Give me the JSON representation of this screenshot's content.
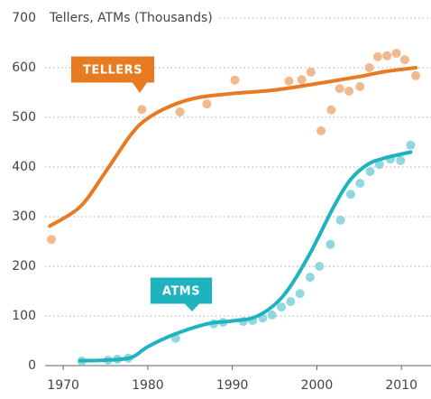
{
  "chart_data": {
    "type": "scatter",
    "title": "Tellers, ATMs (Thousands)",
    "xlim": [
      1967,
      2013.5
    ],
    "xticks": [
      1970,
      1980,
      1990,
      2000,
      2010
    ],
    "ylim": [
      0,
      700
    ],
    "yticks": [
      0,
      100,
      200,
      300,
      400,
      500,
      600,
      700
    ],
    "grid": true,
    "series": [
      {
        "name": "TELLERS",
        "color": "#e87a22",
        "point_color": "#f2b98c",
        "x": [
          1968.6,
          1979.3,
          1983.8,
          1987.0,
          1990.3,
          1996.7,
          1998.2,
          1999.3,
          2000.5,
          2001.7,
          2002.7,
          2003.8,
          2005.1,
          2006.2,
          2007.2,
          2008.3,
          2009.4,
          2010.4,
          2011.7
        ],
        "values": [
          254,
          516,
          511,
          527,
          575,
          573,
          576,
          591,
          473,
          515,
          558,
          553,
          562,
          600,
          622,
          624,
          629,
          616,
          584
        ],
        "trend_x": [
          1968.4,
          1972,
          1975,
          1978,
          1980,
          1983,
          1986,
          1990,
          1995,
          2000,
          2005,
          2008,
          2011.7
        ],
        "trend_values": [
          281,
          320,
          390,
          465,
          498,
          525,
          540,
          548,
          555,
          568,
          582,
          592,
          600
        ]
      },
      {
        "name": "ATMS",
        "color": "#1fb3bf",
        "point_color": "#8fd8de",
        "x": [
          1972.2,
          1975.3,
          1976.4,
          1977.7,
          1983.3,
          1987.8,
          1988.9,
          1991.3,
          1992.4,
          1993.6,
          1994.7,
          1995.8,
          1996.9,
          1998.0,
          1999.2,
          2000.3,
          2001.6,
          2002.8,
          2004.0,
          2005.1,
          2006.3,
          2007.4,
          2008.7,
          2009.9,
          2011.1
        ],
        "values": [
          9,
          11,
          13,
          15,
          55,
          84,
          87,
          89,
          91,
          96,
          102,
          118,
          129,
          145,
          178,
          200,
          244,
          293,
          345,
          367,
          391,
          405,
          416,
          413,
          444
        ],
        "trend_x": [
          1972,
          1975,
          1978,
          1980,
          1983,
          1987,
          1990,
          1993,
          1996,
          1999,
          2002,
          2004,
          2006,
          2008,
          2011.1
        ],
        "trend_values": [
          10,
          11,
          16,
          38,
          62,
          84,
          90,
          100,
          140,
          220,
          320,
          375,
          405,
          418,
          430
        ]
      }
    ]
  }
}
